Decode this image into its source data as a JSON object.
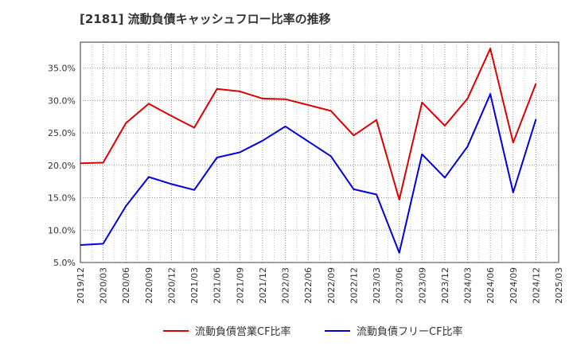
{
  "chart_data": {
    "type": "line",
    "title": "[2181]  流動負債キャッシュフロー比率の推移",
    "x": [
      "2019/12",
      "2020/03",
      "2020/06",
      "2020/09",
      "2020/12",
      "2021/03",
      "2021/06",
      "2021/09",
      "2021/12",
      "2022/03",
      "2022/06",
      "2022/09",
      "2022/12",
      "2023/03",
      "2023/06",
      "2023/09",
      "2023/12",
      "2024/03",
      "2024/06",
      "2024/09",
      "2024/12",
      "2025/03"
    ],
    "y_ticks": [
      "5.0%",
      "10.0%",
      "15.0%",
      "20.0%",
      "25.0%",
      "30.0%",
      "35.0%"
    ],
    "ylim": [
      5.0,
      39.0
    ],
    "grid": true,
    "legend_position": "bottom",
    "series": [
      {
        "name": "流動負債営業CF比率",
        "color": "#dd0000",
        "values": [
          20.3,
          20.4,
          26.5,
          29.5,
          27.6,
          25.8,
          31.8,
          31.4,
          30.3,
          30.2,
          29.3,
          28.4,
          24.6,
          27.0,
          14.7,
          29.7,
          26.1,
          30.3,
          38.0,
          23.5,
          32.6,
          null
        ]
      },
      {
        "name": "流動負債フリーCF比率",
        "color": "#0000dd",
        "values": [
          7.7,
          7.9,
          13.7,
          18.2,
          17.1,
          16.2,
          21.2,
          22.0,
          23.8,
          26.0,
          23.7,
          21.4,
          16.3,
          15.5,
          6.5,
          21.7,
          18.1,
          22.9,
          31.0,
          15.8,
          27.1,
          null
        ]
      }
    ]
  }
}
